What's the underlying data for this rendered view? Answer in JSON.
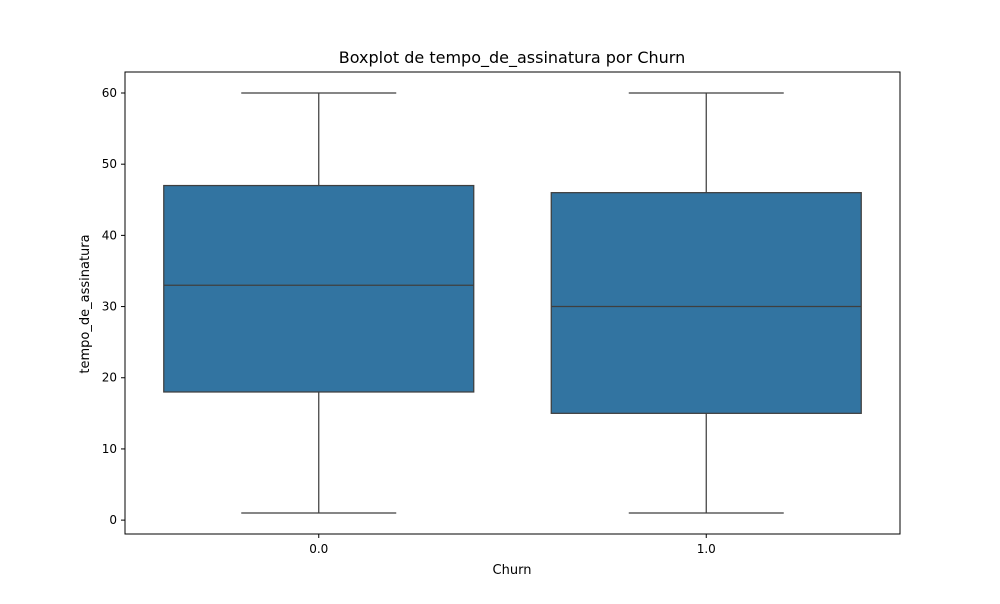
{
  "chart_data": {
    "type": "box",
    "title": "Boxplot de tempo_de_assinatura por Churn",
    "xlabel": "Churn",
    "ylabel": "tempo_de_assinatura",
    "categories": [
      "0.0",
      "1.0"
    ],
    "boxes": [
      {
        "category": "0.0",
        "whisker_low": 1,
        "q1": 18,
        "median": 33,
        "q3": 47,
        "whisker_high": 60
      },
      {
        "category": "1.0",
        "whisker_low": 1,
        "q1": 15,
        "median": 30,
        "q3": 46,
        "whisker_high": 60
      }
    ],
    "yticks": [
      0,
      10,
      20,
      30,
      40,
      50,
      60
    ],
    "ylim": [
      -1.95,
      62.95
    ],
    "grid": false,
    "legend": "none",
    "colors": {
      "box_fill": "#3274a1",
      "line": "#3f3f3f",
      "axis": "#000000"
    }
  }
}
